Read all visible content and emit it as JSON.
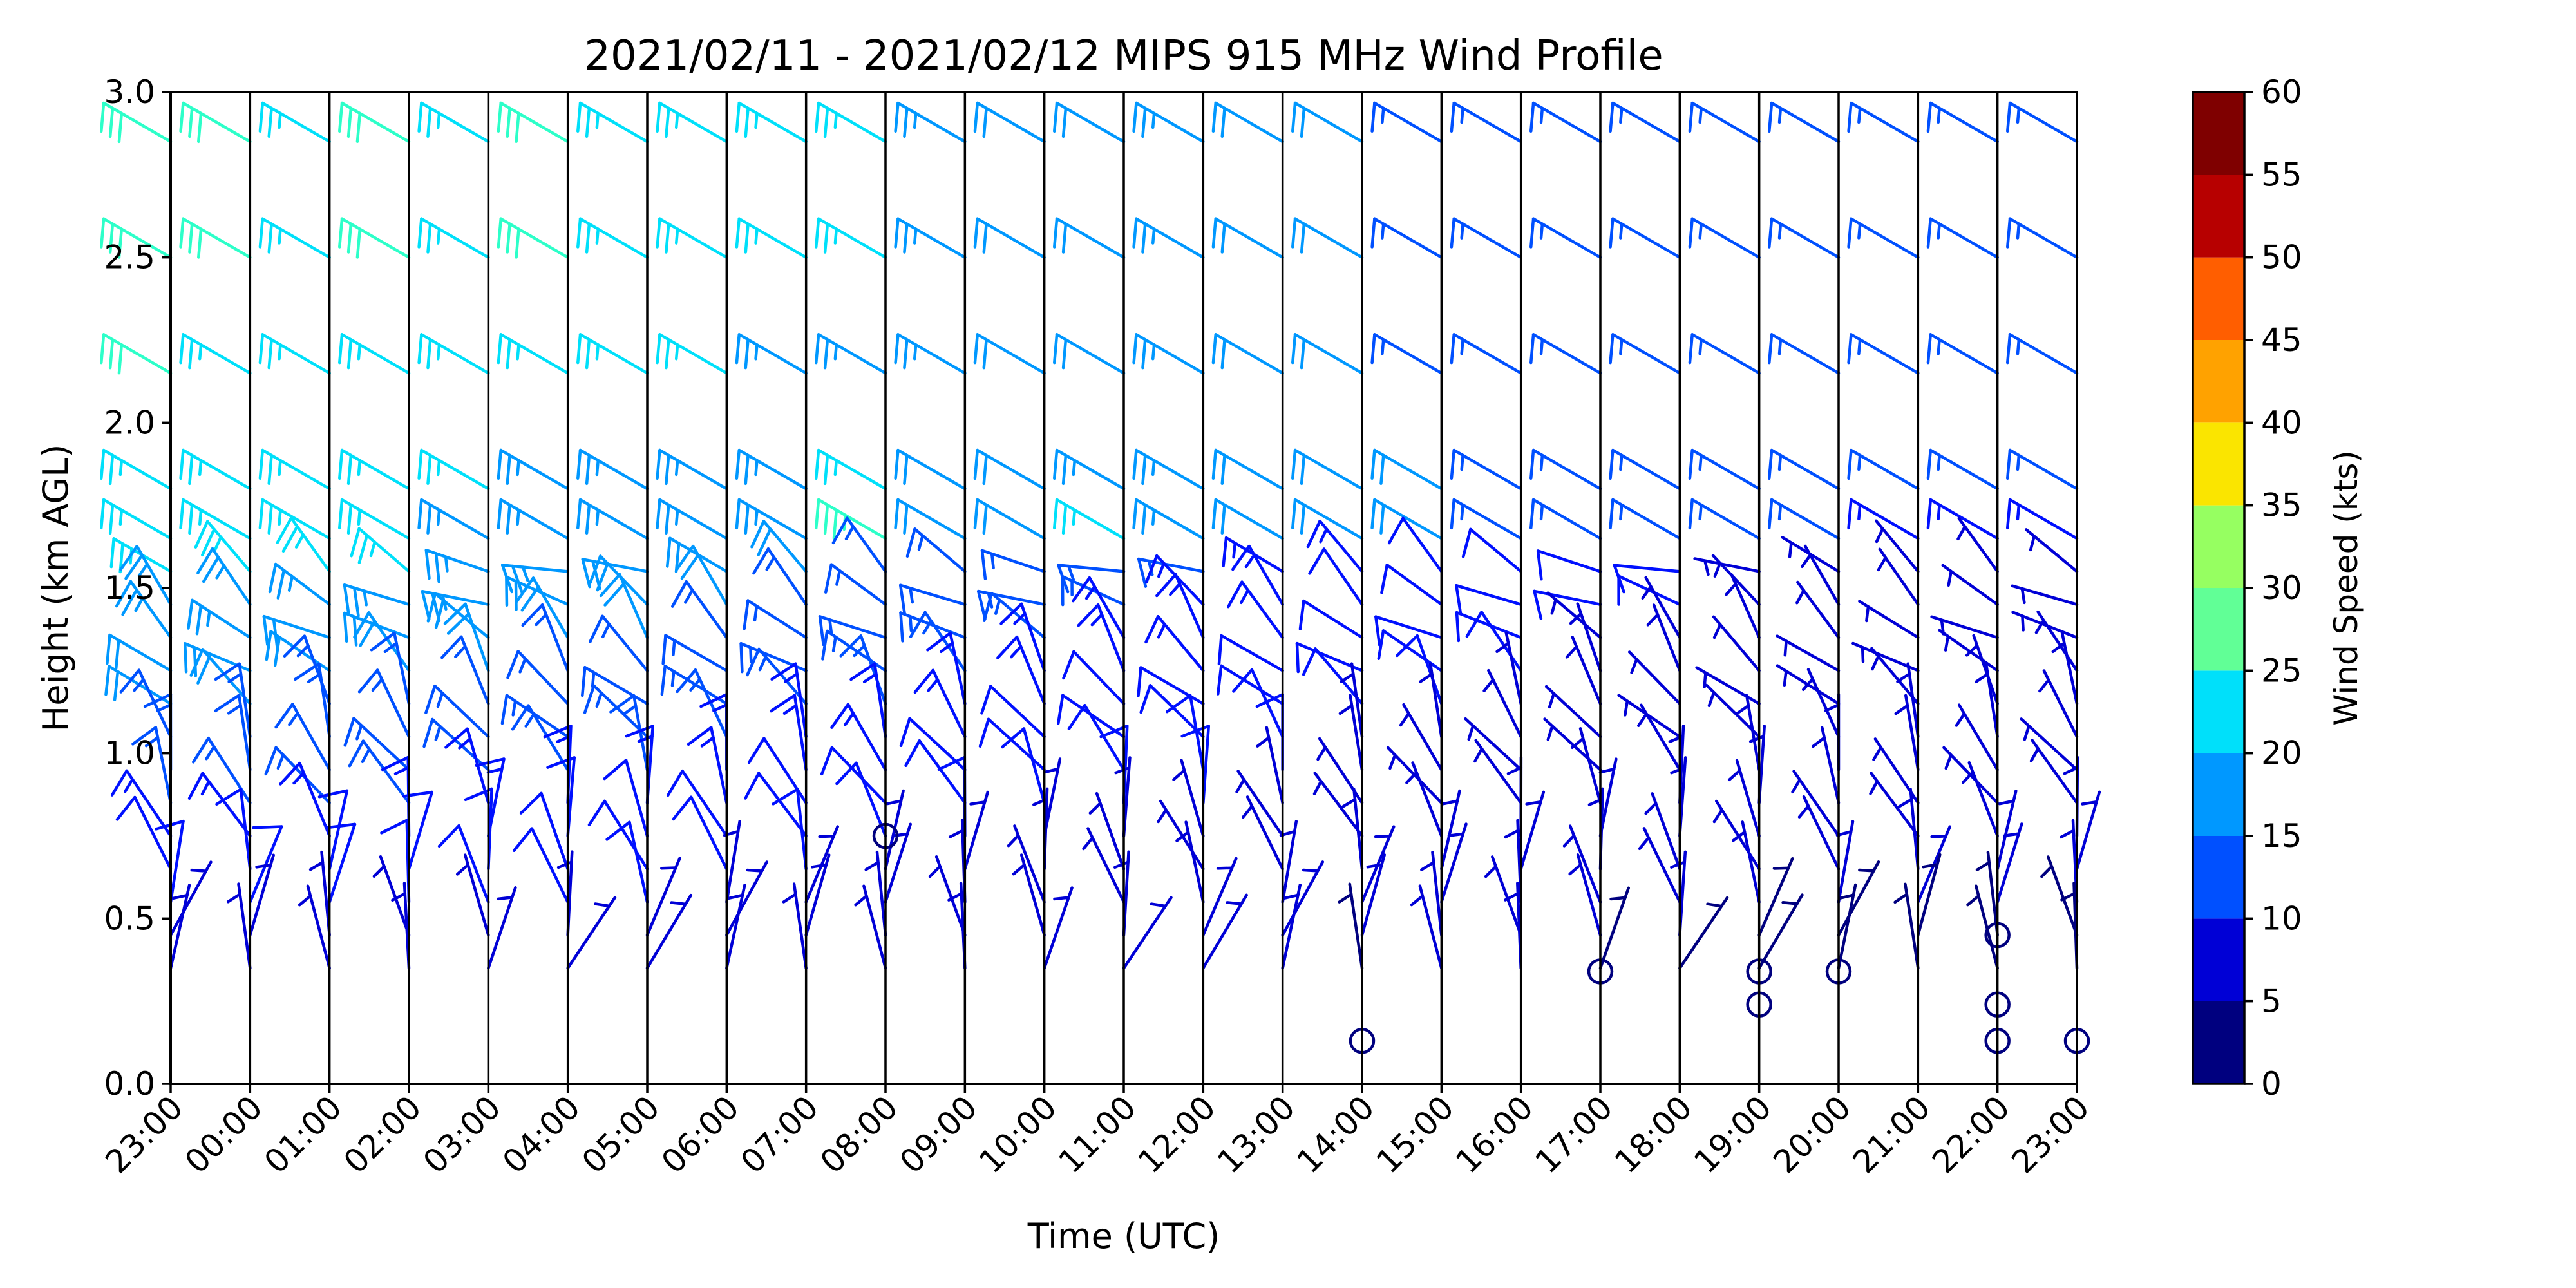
{
  "chart_data": {
    "type": "wind_barb_profile",
    "title": "2021/02/11 - 2021/02/12 MIPS 915 MHz Wind Profile",
    "xlabel": "Time (UTC)",
    "ylabel": "Height (km AGL)",
    "x_tick_labels": [
      "23:00",
      "00:00",
      "01:00",
      "02:00",
      "03:00",
      "04:00",
      "05:00",
      "06:00",
      "07:00",
      "08:00",
      "09:00",
      "10:00",
      "11:00",
      "12:00",
      "13:00",
      "14:00",
      "15:00",
      "16:00",
      "17:00",
      "18:00",
      "19:00",
      "20:00",
      "21:00",
      "22:00",
      "23:00"
    ],
    "ylim": [
      0,
      3.0
    ],
    "y_ticks": [
      0.0,
      0.5,
      1.0,
      1.5,
      2.0,
      2.5,
      3.0
    ],
    "y_tick_labels": [
      "0.0",
      "0.5",
      "1.0",
      "1.5",
      "2.0",
      "2.5",
      "3.0"
    ],
    "colorbar": {
      "label": "Wind Speed (kts)",
      "ticks": [
        0,
        5,
        10,
        15,
        20,
        25,
        30,
        35,
        40,
        45,
        50,
        55,
        60
      ],
      "colors": [
        "#00007f",
        "#0000d6",
        "#0010ff",
        "#0050ff",
        "#0098ff",
        "#00e0fa",
        "#2dffc9",
        "#61ff96",
        "#96ff61",
        "#c9ff2d",
        "#fae500",
        "#ffa200",
        "#ff5e00",
        "#ff1e00",
        "#b70000",
        "#7f0000"
      ]
    },
    "upper_heights_km": [
      2.85,
      2.5,
      2.15,
      1.8,
      1.65
    ],
    "upper_speed_kts": [
      [
        31,
        31,
        29,
        30,
        29,
        30,
        28,
        27,
        26,
        25,
        23,
        22,
        22,
        23,
        22,
        20,
        19,
        19,
        19,
        18,
        18,
        18,
        18,
        18,
        18
      ],
      [
        31,
        31,
        29,
        30,
        29,
        30,
        28,
        27,
        26,
        25,
        23,
        22,
        22,
        23,
        22,
        20,
        19,
        19,
        19,
        18,
        18,
        18,
        18,
        18,
        18
      ],
      [
        31,
        29,
        28,
        28,
        27,
        27,
        26,
        25,
        24,
        24,
        23,
        22,
        22,
        23,
        22,
        20,
        19,
        19,
        19,
        18,
        18,
        18,
        18,
        18,
        18
      ],
      [
        27,
        27,
        26,
        25,
        25,
        24,
        24,
        24,
        24,
        26,
        22,
        22,
        24,
        23,
        22,
        21,
        20,
        19,
        19,
        18,
        17,
        17,
        16,
        15,
        15
      ],
      [
        27,
        26,
        25,
        25,
        24,
        24,
        24,
        24,
        24,
        33,
        21,
        21,
        29,
        24,
        22,
        21,
        20,
        19,
        18,
        17,
        16,
        15,
        14,
        13,
        13
      ]
    ],
    "lower_layer": {
      "heights_km": [
        1.55,
        1.45,
        1.35,
        1.25,
        1.15,
        1.05,
        0.95,
        0.85,
        0.75,
        0.65,
        0.55,
        0.45,
        0.35
      ],
      "speed_kts_at_top": [
        26,
        26,
        25,
        25,
        24,
        23,
        22,
        21,
        20,
        19,
        18,
        17,
        16,
        15,
        14,
        13,
        12,
        11,
        10,
        10,
        9,
        9,
        9,
        9,
        9
      ],
      "speed_kts_at_bottom": [
        7,
        7,
        7,
        7,
        7,
        7,
        7,
        7,
        6,
        6,
        6,
        5,
        5,
        6,
        5,
        4,
        5,
        5,
        4,
        4,
        4,
        4,
        4,
        4,
        4
      ]
    },
    "calm_markers": [
      {
        "time": "08:00",
        "height_km": 0.75
      },
      {
        "time": "14:00",
        "height_km": 0.13
      },
      {
        "time": "17:00",
        "height_km": 0.34
      },
      {
        "time": "19:00",
        "height_km": 0.34
      },
      {
        "time": "19:00",
        "height_km": 0.24
      },
      {
        "time": "20:00",
        "height_km": 0.34
      },
      {
        "time": "22:00",
        "height_km": 0.45
      },
      {
        "time": "22:00",
        "height_km": 0.24
      },
      {
        "time": "22:00",
        "height_km": 0.13
      },
      {
        "time": "23:00",
        "height_km": 0.13
      }
    ]
  }
}
